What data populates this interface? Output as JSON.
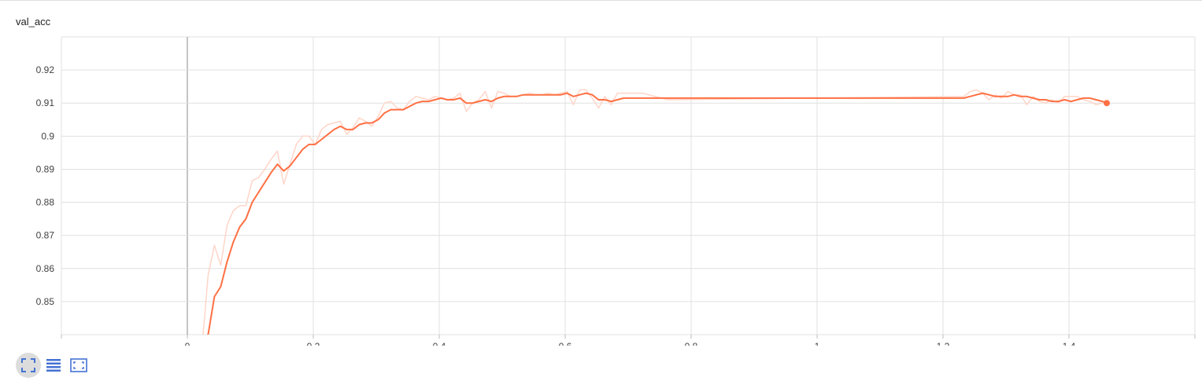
{
  "card": {
    "title": "val_acc"
  },
  "toolbar": [
    {
      "name": "fit-domain-button",
      "icon": "fullscreen-icon",
      "active": true
    },
    {
      "name": "data-table-button",
      "icon": "list-icon",
      "active": false
    },
    {
      "name": "fit-to-data-button",
      "icon": "fit-screen-icon",
      "active": false
    }
  ],
  "colors": {
    "raw": "#ffd5c8",
    "smoothed": "#ff7043",
    "grid": "#e0e0e0",
    "axis_zero": "#9e9e9e",
    "icon": "#4472d3"
  },
  "chart_data": {
    "type": "line",
    "title": "val_acc",
    "xlabel": "",
    "ylabel": "",
    "xlim": [
      -0.2,
      1.6
    ],
    "ylim": [
      0.84,
      0.93
    ],
    "x_ticks": [
      0,
      0.2,
      0.4,
      0.6,
      0.8,
      1,
      1.2,
      1.4
    ],
    "x_tick_labels": [
      "0",
      "0.2",
      "0.4",
      "0.6",
      "0.8",
      "1",
      "1.2",
      "1.4"
    ],
    "y_ticks": [
      0.85,
      0.86,
      0.87,
      0.88,
      0.89,
      0.9,
      0.91,
      0.92
    ],
    "y_tick_labels": [
      "0.85",
      "0.86",
      "0.87",
      "0.88",
      "0.89",
      "0.9",
      "0.91",
      "0.92"
    ],
    "grid": true,
    "series": [
      {
        "role": "raw",
        "x": [
          0.025,
          0.033,
          0.043,
          0.053,
          0.063,
          0.073,
          0.083,
          0.093,
          0.103,
          0.113,
          0.123,
          0.133,
          0.143,
          0.153,
          0.163,
          0.173,
          0.183,
          0.193,
          0.203,
          0.213,
          0.223,
          0.233,
          0.243,
          0.253,
          0.263,
          0.273,
          0.283,
          0.293,
          0.303,
          0.313,
          0.323,
          0.333,
          0.343,
          0.353,
          0.363,
          0.373,
          0.383,
          0.393,
          0.403,
          0.413,
          0.423,
          0.433,
          0.443,
          0.453,
          0.463,
          0.473,
          0.483,
          0.493,
          0.503,
          0.513,
          0.523,
          0.533,
          0.543,
          0.553,
          0.563,
          0.573,
          0.583,
          0.593,
          0.603,
          0.613,
          0.623,
          0.633,
          0.643,
          0.653,
          0.663,
          0.673,
          0.683,
          0.693,
          0.703,
          0.713,
          0.723,
          0.733,
          0.743,
          0.753,
          0.763,
          1.233,
          1.243,
          1.253,
          1.263,
          1.273,
          1.283,
          1.293,
          1.303,
          1.313,
          1.323,
          1.333,
          1.343,
          1.353,
          1.363,
          1.373,
          1.383,
          1.393,
          1.403,
          1.413,
          1.423,
          1.433,
          1.443,
          1.453
        ],
        "values": [
          0.84,
          0.858,
          0.867,
          0.861,
          0.873,
          0.8775,
          0.879,
          0.879,
          0.8865,
          0.8875,
          0.89,
          0.893,
          0.8955,
          0.8855,
          0.8915,
          0.8975,
          0.9,
          0.9,
          0.8975,
          0.902,
          0.9035,
          0.904,
          0.9045,
          0.9005,
          0.9025,
          0.9055,
          0.9045,
          0.903,
          0.906,
          0.91,
          0.9105,
          0.9085,
          0.908,
          0.9105,
          0.912,
          0.9115,
          0.911,
          0.912,
          0.9115,
          0.911,
          0.9115,
          0.913,
          0.9075,
          0.91,
          0.911,
          0.9135,
          0.9085,
          0.9135,
          0.913,
          0.912,
          0.912,
          0.9125,
          0.913,
          0.9125,
          0.9125,
          0.913,
          0.9125,
          0.913,
          0.9135,
          0.9095,
          0.914,
          0.914,
          0.9115,
          0.9085,
          0.912,
          0.9095,
          0.913,
          0.913,
          0.913,
          0.913,
          0.913,
          0.9125,
          0.912,
          0.9115,
          0.911,
          0.912,
          0.9135,
          0.914,
          0.913,
          0.911,
          0.9125,
          0.9115,
          0.9135,
          0.9125,
          0.9125,
          0.9095,
          0.912,
          0.9105,
          0.91,
          0.911,
          0.91,
          0.912,
          0.912,
          0.912,
          0.911,
          0.9105,
          0.9095,
          0.91
        ]
      },
      {
        "role": "smoothed",
        "x": [
          0.0,
          0.033,
          0.043,
          0.053,
          0.063,
          0.073,
          0.083,
          0.093,
          0.103,
          0.113,
          0.123,
          0.133,
          0.143,
          0.153,
          0.163,
          0.173,
          0.183,
          0.193,
          0.203,
          0.213,
          0.223,
          0.233,
          0.243,
          0.253,
          0.263,
          0.273,
          0.283,
          0.293,
          0.303,
          0.313,
          0.323,
          0.333,
          0.343,
          0.353,
          0.363,
          0.373,
          0.383,
          0.393,
          0.403,
          0.413,
          0.423,
          0.433,
          0.443,
          0.453,
          0.463,
          0.473,
          0.483,
          0.493,
          0.503,
          0.513,
          0.523,
          0.533,
          0.543,
          0.553,
          0.563,
          0.573,
          0.583,
          0.593,
          0.603,
          0.613,
          0.623,
          0.633,
          0.643,
          0.653,
          0.663,
          0.673,
          0.683,
          0.693,
          0.703,
          0.713,
          0.723,
          0.733,
          0.743,
          0.753,
          0.763,
          1.223,
          1.233,
          1.243,
          1.253,
          1.263,
          1.273,
          1.283,
          1.293,
          1.303,
          1.313,
          1.323,
          1.333,
          1.343,
          1.353,
          1.363,
          1.373,
          1.383,
          1.393,
          1.403,
          1.413,
          1.423,
          1.433,
          1.443,
          1.453,
          1.46
        ],
        "values": [
          0.835,
          0.84,
          0.8515,
          0.8545,
          0.862,
          0.868,
          0.8725,
          0.875,
          0.88,
          0.883,
          0.886,
          0.889,
          0.8915,
          0.8895,
          0.891,
          0.8935,
          0.896,
          0.8975,
          0.8975,
          0.899,
          0.9005,
          0.902,
          0.903,
          0.902,
          0.902,
          0.9035,
          0.904,
          0.904,
          0.905,
          0.907,
          0.908,
          0.908,
          0.908,
          0.909,
          0.91,
          0.9105,
          0.9105,
          0.911,
          0.9115,
          0.911,
          0.911,
          0.9115,
          0.91,
          0.91,
          0.9105,
          0.911,
          0.9105,
          0.9115,
          0.912,
          0.912,
          0.912,
          0.9125,
          0.9125,
          0.9125,
          0.9125,
          0.9125,
          0.9125,
          0.9125,
          0.913,
          0.912,
          0.9125,
          0.913,
          0.9125,
          0.911,
          0.911,
          0.9105,
          0.911,
          0.9115,
          0.9115,
          0.9115,
          0.9115,
          0.9115,
          0.9115,
          0.9115,
          0.9115,
          0.9115,
          0.9115,
          0.912,
          0.9125,
          0.913,
          0.9125,
          0.912,
          0.912,
          0.912,
          0.9125,
          0.912,
          0.912,
          0.9115,
          0.911,
          0.911,
          0.9105,
          0.9105,
          0.911,
          0.9105,
          0.911,
          0.9115,
          0.9115,
          0.911,
          0.9105,
          0.91
        ]
      }
    ]
  }
}
